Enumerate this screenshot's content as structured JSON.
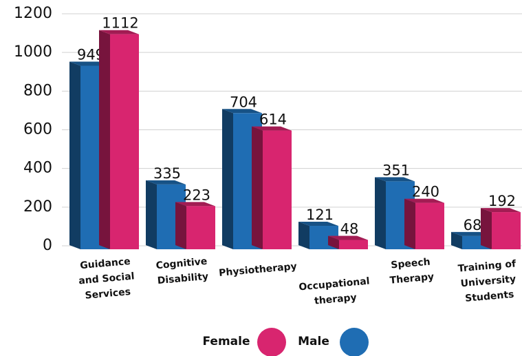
{
  "chart_data": {
    "type": "bar3d",
    "categories": [
      [
        "Guidance",
        "and Social",
        "Services"
      ],
      [
        "Cognitive",
        "Disability"
      ],
      [
        "Physiotherapy"
      ],
      [
        "Occupational",
        "therapy"
      ],
      [
        "Speech",
        "Therapy"
      ],
      [
        "Training of",
        "University",
        "Students"
      ]
    ],
    "series": [
      {
        "name": "Male",
        "color": "#1f6db3",
        "values": [
          949,
          335,
          704,
          121,
          351,
          68
        ]
      },
      {
        "name": "Female",
        "color": "#d8256f",
        "values": [
          1112,
          223,
          614,
          48,
          240,
          192
        ]
      }
    ],
    "legend_order": [
      "Female",
      "Male"
    ],
    "ylim": [
      0,
      1200
    ],
    "yticks": [
      0,
      200,
      400,
      600,
      800,
      1000,
      1200
    ],
    "grid": true
  }
}
